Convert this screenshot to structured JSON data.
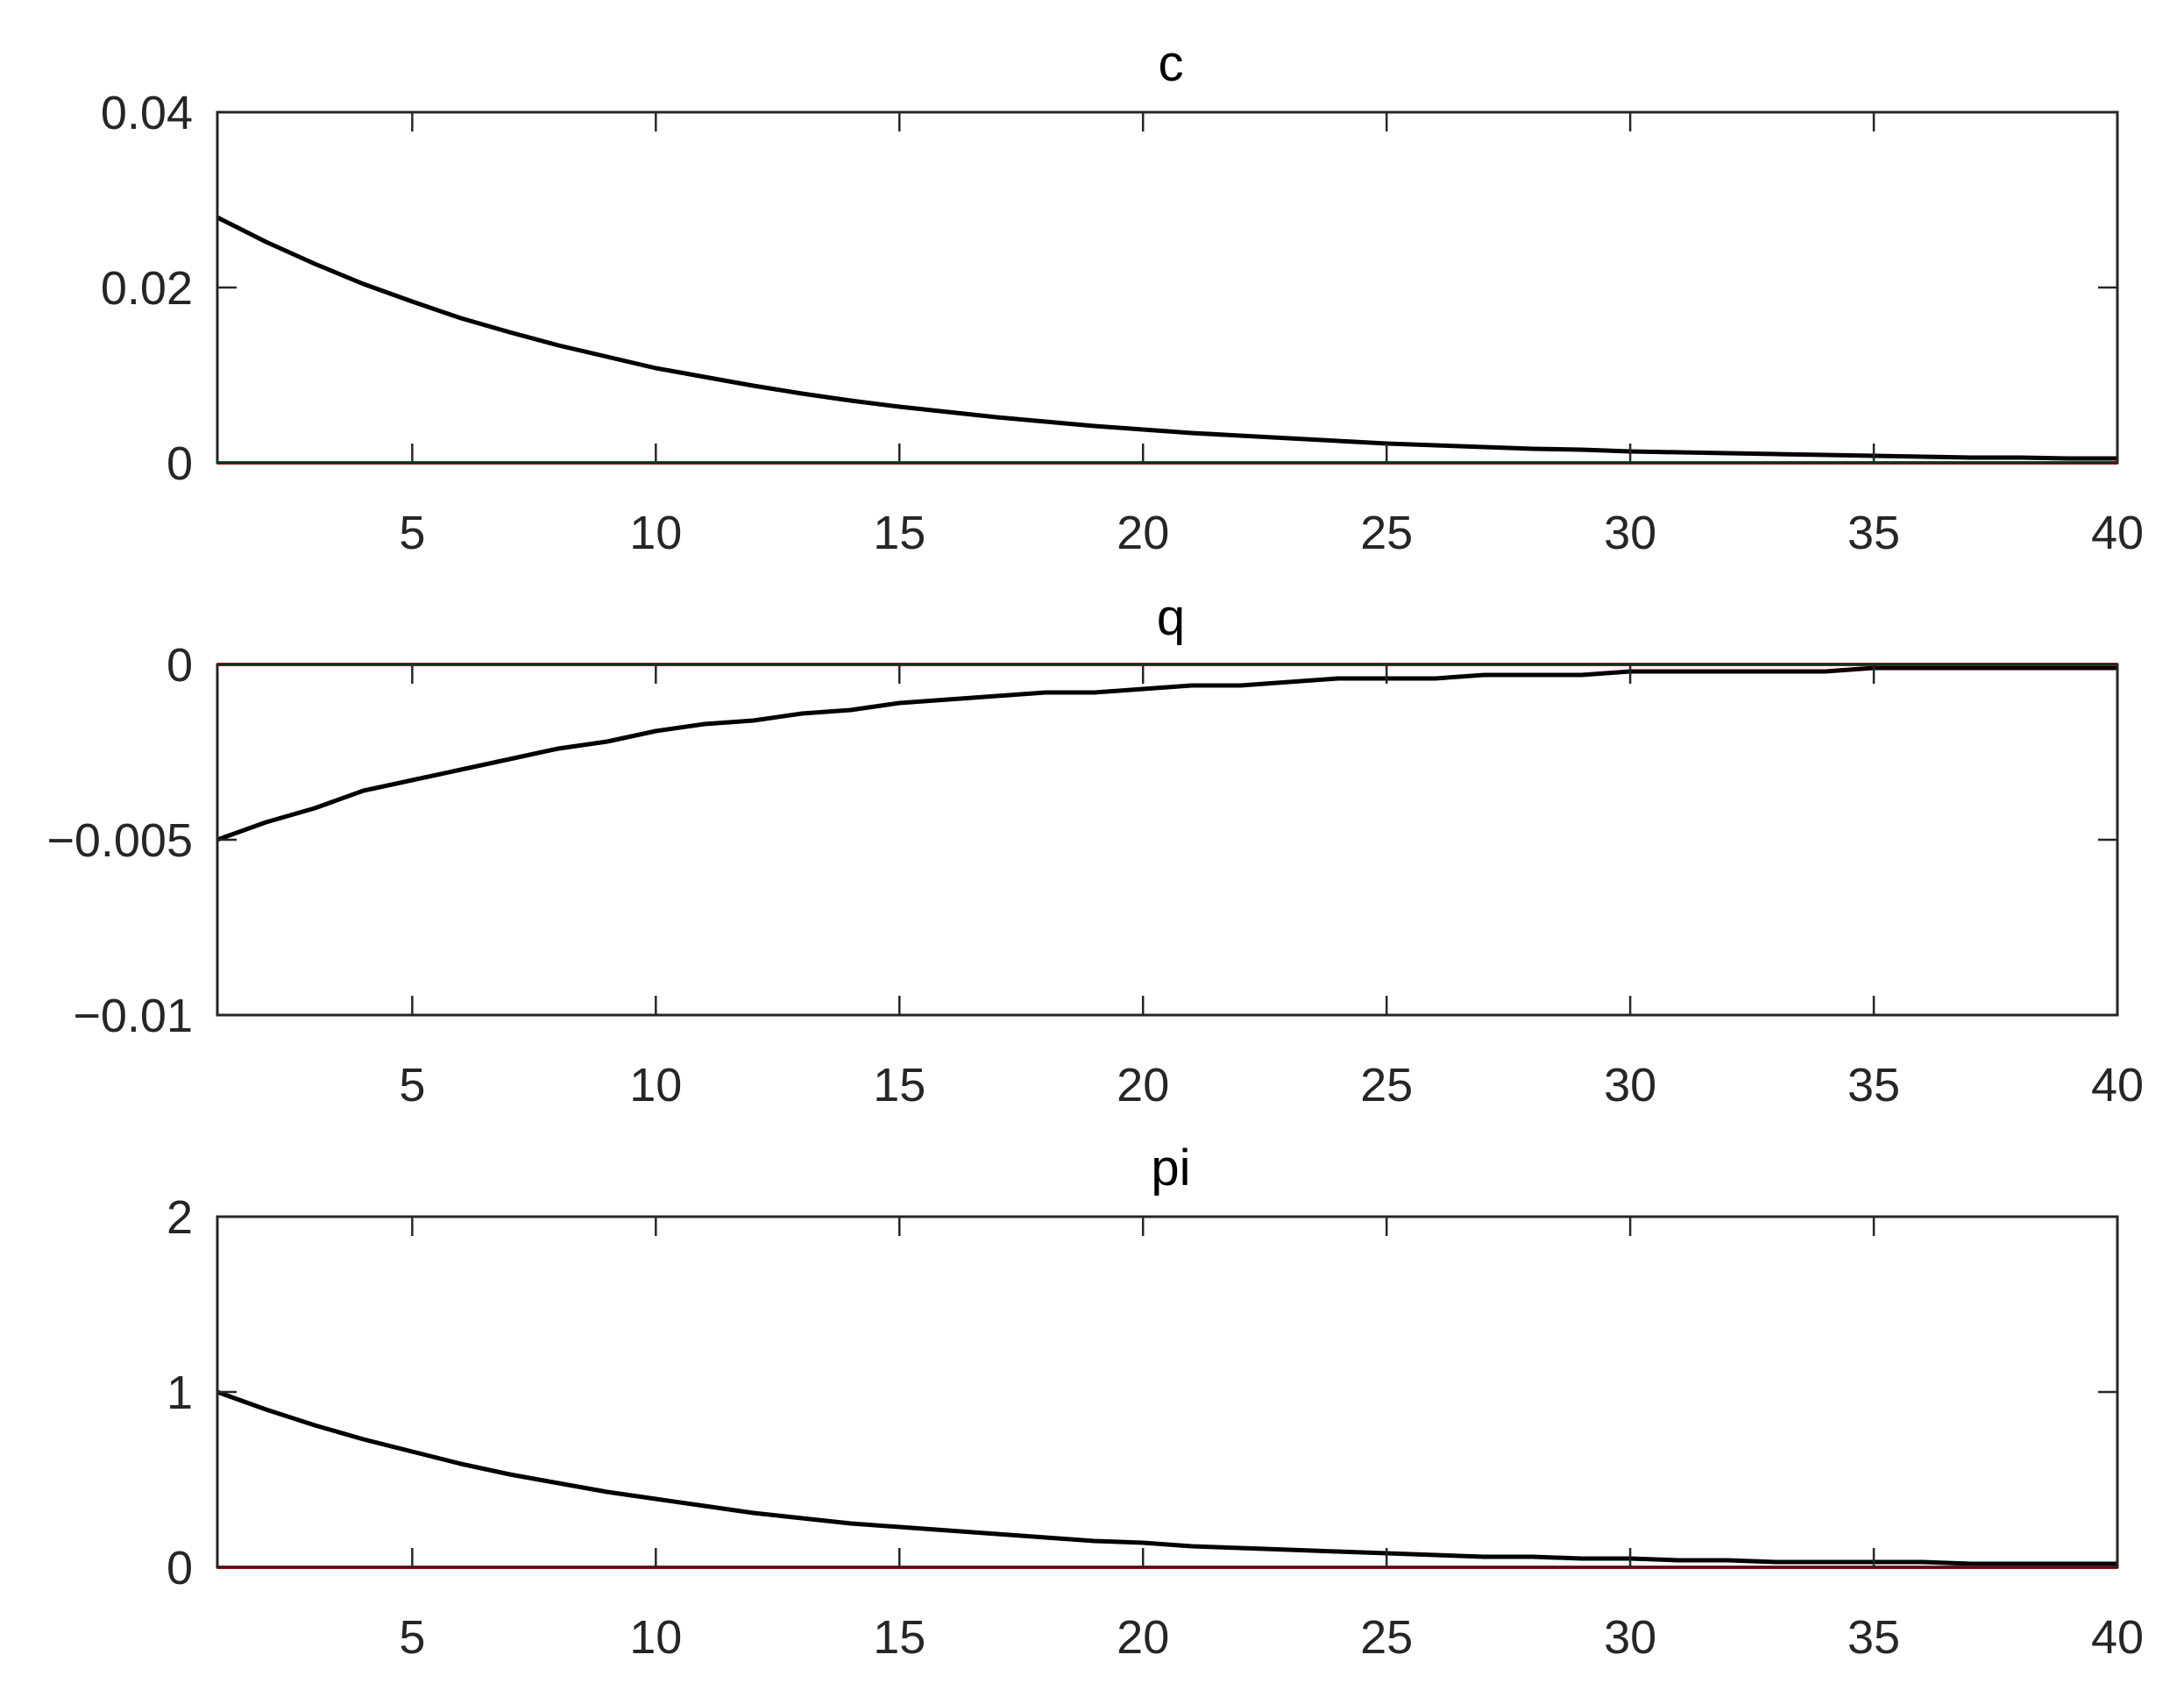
{
  "chart_data": [
    {
      "type": "line",
      "title": "c",
      "x": [
        1,
        2,
        3,
        4,
        5,
        6,
        7,
        8,
        9,
        10,
        11,
        12,
        13,
        14,
        15,
        16,
        17,
        18,
        19,
        20,
        21,
        22,
        23,
        24,
        25,
        26,
        27,
        28,
        29,
        30,
        31,
        32,
        33,
        34,
        35,
        36,
        37,
        38,
        39,
        40
      ],
      "series": [
        {
          "color": "#000000",
          "values": [
            0.028,
            0.0252,
            0.0227,
            0.0204,
            0.0184,
            0.0165,
            0.0149,
            0.0134,
            0.0121,
            0.0108,
            0.0098,
            0.0088,
            0.0079,
            0.0071,
            0.0064,
            0.0058,
            0.0052,
            0.0047,
            0.0042,
            0.0038,
            0.0034,
            0.0031,
            0.0028,
            0.0025,
            0.0022,
            0.002,
            0.0018,
            0.0016,
            0.0015,
            0.0013,
            0.0012,
            0.0011,
            0.001,
            0.0009,
            0.0008,
            0.0007,
            0.0006,
            0.0006,
            0.0005,
            0.0005
          ]
        },
        {
          "color": "#ff0000",
          "values": [
            0,
            0,
            0,
            0,
            0,
            0,
            0,
            0,
            0,
            0,
            0,
            0,
            0,
            0,
            0,
            0,
            0,
            0,
            0,
            0,
            0,
            0,
            0,
            0,
            0,
            0,
            0,
            0,
            0,
            0,
            0,
            0,
            0,
            0,
            0,
            0,
            0,
            0,
            0,
            0
          ]
        }
      ],
      "xlim": [
        1,
        40
      ],
      "ylim": [
        0,
        0.04
      ],
      "xticks": [
        5,
        10,
        15,
        20,
        25,
        30,
        35,
        40
      ],
      "xtick_labels": [
        "5",
        "10",
        "15",
        "20",
        "25",
        "30",
        "35",
        "40"
      ],
      "yticks": [
        0,
        0.02,
        0.04
      ],
      "ytick_labels": [
        "0",
        "0.02",
        "0.04"
      ],
      "grid": false
    },
    {
      "type": "line",
      "title": "q",
      "x": [
        1,
        2,
        3,
        4,
        5,
        6,
        7,
        8,
        9,
        10,
        11,
        12,
        13,
        14,
        15,
        16,
        17,
        18,
        19,
        20,
        21,
        22,
        23,
        24,
        25,
        26,
        27,
        28,
        29,
        30,
        31,
        32,
        33,
        34,
        35,
        36,
        37,
        38,
        39,
        40
      ],
      "series": [
        {
          "color": "#000000",
          "values": [
            -0.005,
            -0.0045,
            -0.0041,
            -0.0036,
            -0.0033,
            -0.003,
            -0.0027,
            -0.0024,
            -0.0022,
            -0.0019,
            -0.0017,
            -0.0016,
            -0.0014,
            -0.0013,
            -0.0011,
            -0.001,
            -0.0009,
            -0.0008,
            -0.0008,
            -0.0007,
            -0.0006,
            -0.0006,
            -0.0005,
            -0.0004,
            -0.0004,
            -0.0004,
            -0.0003,
            -0.0003,
            -0.0003,
            -0.0002,
            -0.0002,
            -0.0002,
            -0.0002,
            -0.0002,
            -0.0001,
            -0.0001,
            -0.0001,
            -0.0001,
            -0.0001,
            -0.0001
          ]
        },
        {
          "color": "#ff0000",
          "values": [
            0,
            0,
            0,
            0,
            0,
            0,
            0,
            0,
            0,
            0,
            0,
            0,
            0,
            0,
            0,
            0,
            0,
            0,
            0,
            0,
            0,
            0,
            0,
            0,
            0,
            0,
            0,
            0,
            0,
            0,
            0,
            0,
            0,
            0,
            0,
            0,
            0,
            0,
            0,
            0
          ]
        }
      ],
      "xlim": [
        1,
        40
      ],
      "ylim": [
        -0.01,
        0
      ],
      "xticks": [
        5,
        10,
        15,
        20,
        25,
        30,
        35,
        40
      ],
      "xtick_labels": [
        "5",
        "10",
        "15",
        "20",
        "25",
        "30",
        "35",
        "40"
      ],
      "yticks": [
        -0.01,
        -0.005,
        0
      ],
      "ytick_labels": [
        "−0.01",
        "−0.005",
        "0"
      ],
      "grid": false
    },
    {
      "type": "line",
      "title": "pi",
      "x": [
        1,
        2,
        3,
        4,
        5,
        6,
        7,
        8,
        9,
        10,
        11,
        12,
        13,
        14,
        15,
        16,
        17,
        18,
        19,
        20,
        21,
        22,
        23,
        24,
        25,
        26,
        27,
        28,
        29,
        30,
        31,
        32,
        33,
        34,
        35,
        36,
        37,
        38,
        39,
        40
      ],
      "series": [
        {
          "color": "#000000",
          "values": [
            1.0,
            0.9,
            0.81,
            0.73,
            0.66,
            0.59,
            0.53,
            0.48,
            0.43,
            0.39,
            0.35,
            0.31,
            0.28,
            0.25,
            0.23,
            0.21,
            0.19,
            0.17,
            0.15,
            0.14,
            0.12,
            0.11,
            0.1,
            0.09,
            0.08,
            0.07,
            0.06,
            0.06,
            0.05,
            0.05,
            0.04,
            0.04,
            0.03,
            0.03,
            0.03,
            0.03,
            0.02,
            0.02,
            0.02,
            0.02
          ]
        },
        {
          "color": "#ff0000",
          "values": [
            0,
            0,
            0,
            0,
            0,
            0,
            0,
            0,
            0,
            0,
            0,
            0,
            0,
            0,
            0,
            0,
            0,
            0,
            0,
            0,
            0,
            0,
            0,
            0,
            0,
            0,
            0,
            0,
            0,
            0,
            0,
            0,
            0,
            0,
            0,
            0,
            0,
            0,
            0,
            0
          ]
        }
      ],
      "xlim": [
        1,
        40
      ],
      "ylim": [
        0,
        2
      ],
      "xticks": [
        5,
        10,
        15,
        20,
        25,
        30,
        35,
        40
      ],
      "xtick_labels": [
        "5",
        "10",
        "15",
        "20",
        "25",
        "30",
        "35",
        "40"
      ],
      "yticks": [
        0,
        1,
        2
      ],
      "ytick_labels": [
        "0",
        "1",
        "2"
      ],
      "grid": false
    }
  ]
}
